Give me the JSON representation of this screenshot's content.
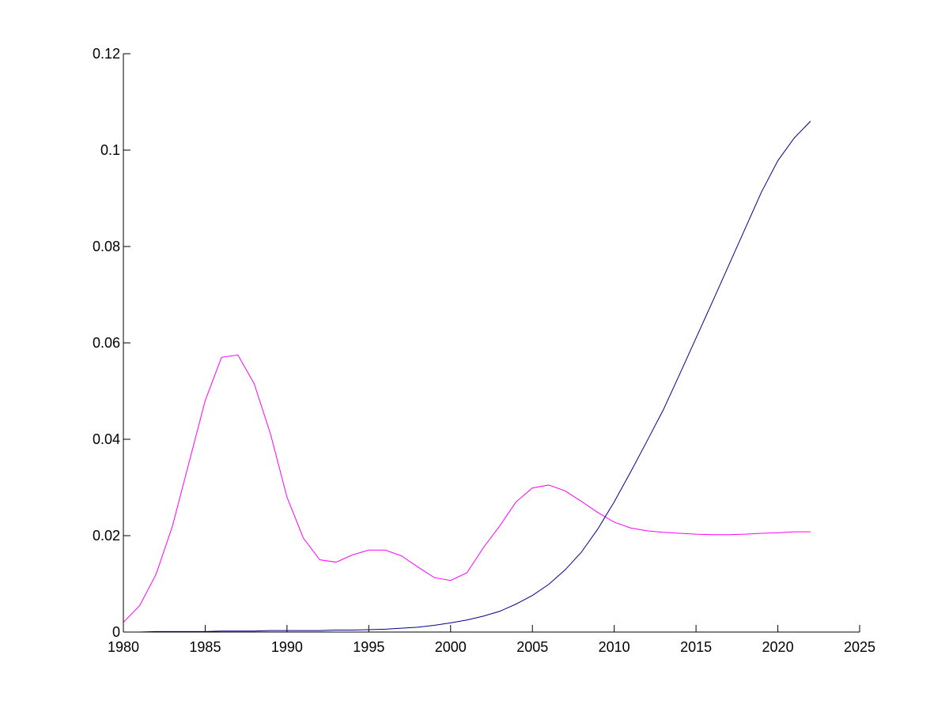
{
  "chart_data": {
    "type": "line",
    "title": "",
    "xlabel": "",
    "ylabel": "",
    "xlim": [
      1980,
      2025
    ],
    "ylim": [
      0,
      0.12
    ],
    "grid": false,
    "x_ticks": [
      1980,
      1985,
      1990,
      1995,
      2000,
      2005,
      2010,
      2015,
      2020,
      2025
    ],
    "y_ticks": [
      0,
      0.02,
      0.04,
      0.06,
      0.08,
      0.1,
      0.12
    ],
    "x_tick_labels": [
      "1980",
      "1985",
      "1990",
      "1995",
      "2000",
      "2005",
      "2010",
      "2015",
      "2020",
      "2025"
    ],
    "y_tick_labels": [
      "0",
      "0.02",
      "0.04",
      "0.06",
      "0.08",
      "0.1",
      "0.12"
    ],
    "x": [
      1980,
      1981,
      1982,
      1983,
      1984,
      1985,
      1986,
      1987,
      1988,
      1989,
      1990,
      1991,
      1992,
      1993,
      1994,
      1995,
      1996,
      1997,
      1998,
      1999,
      2000,
      2001,
      2002,
      2003,
      2004,
      2005,
      2006,
      2007,
      2008,
      2009,
      2010,
      2011,
      2012,
      2013,
      2014,
      2015,
      2016,
      2017,
      2018,
      2019,
      2020,
      2021,
      2022
    ],
    "series": [
      {
        "color": "#ff00ff",
        "values": [
          0.002,
          0.0055,
          0.012,
          0.022,
          0.035,
          0.048,
          0.057,
          0.0575,
          0.0515,
          0.041,
          0.028,
          0.0195,
          0.015,
          0.0145,
          0.016,
          0.017,
          0.017,
          0.0158,
          0.0135,
          0.0113,
          0.0107,
          0.0123,
          0.0175,
          0.022,
          0.027,
          0.0299,
          0.0305,
          0.0293,
          0.0271,
          0.0248,
          0.0228,
          0.0216,
          0.021,
          0.0207,
          0.0205,
          0.0203,
          0.0202,
          0.0202,
          0.0203,
          0.0205,
          0.0206,
          0.0208,
          0.0208
        ]
      },
      {
        "color": "#00008b",
        "values": [
          0.0,
          0.0,
          0.0001,
          0.0001,
          0.0001,
          0.0001,
          0.0002,
          0.0002,
          0.0002,
          0.0003,
          0.0003,
          0.0003,
          0.0003,
          0.0004,
          0.0004,
          0.0005,
          0.0006,
          0.0008,
          0.001,
          0.0014,
          0.0019,
          0.0025,
          0.0033,
          0.0043,
          0.0058,
          0.0076,
          0.0099,
          0.0129,
          0.0166,
          0.0214,
          0.027,
          0.0332,
          0.0396,
          0.0461,
          0.0535,
          0.061,
          0.0685,
          0.0761,
          0.0837,
          0.0913,
          0.0978,
          0.1025,
          0.106
        ]
      }
    ]
  }
}
